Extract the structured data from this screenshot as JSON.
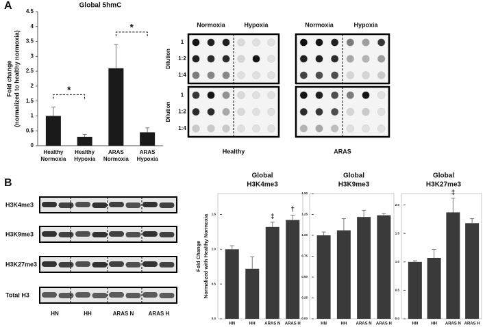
{
  "panels": {
    "a": "A",
    "b": "B"
  },
  "dot_blot": {
    "conditions": [
      "Normoxia",
      "Hypoxia",
      "Normoxia",
      "Hypoxia"
    ],
    "dilution_title": "Dilution",
    "dilutions": [
      "1",
      "1:2",
      "1:4"
    ],
    "groups": [
      "Healthy",
      "ARAS"
    ]
  },
  "western_blot": {
    "rows": [
      "H3K4me3",
      "H3K9me3",
      "H3K27me3",
      "Total H3"
    ],
    "lanes": [
      "HN",
      "HH",
      "ARAS N",
      "ARAS H"
    ]
  },
  "chart_data": [
    {
      "type": "bar",
      "title": "Global 5hmC",
      "y_label": [
        "Fold change",
        "(normalized to healthy normoxia)"
      ],
      "categories": [
        [
          "Healthy",
          "Normoxia"
        ],
        [
          "Healthy",
          "Hypoxia"
        ],
        [
          "ARAS",
          "Normoxia"
        ],
        [
          "ARAS",
          "Hypoxia"
        ]
      ],
      "series": [
        {
          "color": "#1a1a1a",
          "values": [
            1.0,
            0.3,
            2.6,
            0.45
          ],
          "errors": [
            0.3,
            0.08,
            0.8,
            0.15
          ]
        }
      ],
      "ylim": [
        0,
        4.5
      ],
      "yticks": [
        0,
        0.5,
        1,
        1.5,
        2,
        2.5,
        3,
        3.5,
        4,
        4.5
      ],
      "annotations": [
        "*",
        "*"
      ]
    },
    {
      "type": "bar",
      "title": [
        "Global",
        "H3K4me3"
      ],
      "y_label": [
        "Fold Change",
        "Normalized with Healthy Normoxia"
      ],
      "categories": [
        "HN",
        "HH",
        "ARAS N",
        "ARAS H"
      ],
      "series": [
        {
          "color": "#3a3a3a",
          "values": [
            1.0,
            0.72,
            1.32,
            1.42
          ],
          "errors": [
            0.05,
            0.17,
            0.07,
            0.07
          ]
        }
      ],
      "ylim": [
        0,
        1.8
      ],
      "yticks": [
        {
          "value": 0,
          "label": "0.0"
        },
        {
          "value": 0.5,
          "label": "0.5"
        },
        {
          "value": 1,
          "label": "1.0"
        },
        1.5
      ],
      "annotations": [
        {
          "category": "ARAS N",
          "text": "‡"
        },
        {
          "category": "ARAS H",
          "text": "†"
        }
      ]
    },
    {
      "type": "bar",
      "title": [
        "Global",
        "H3K9me3"
      ],
      "categories": [
        "HN",
        "HH",
        "ARAS N",
        "ARAS H"
      ],
      "series": [
        {
          "color": "#3a3a3a",
          "values": [
            1.0,
            1.06,
            1.22,
            1.24
          ],
          "errors": [
            0.04,
            0.14,
            0.08,
            0.02
          ]
        }
      ],
      "ylim": [
        0,
        1.5
      ],
      "yticks": [
        {
          "value": 0,
          "label": "0.00"
        },
        0.25,
        {
          "value": 0.5,
          "label": "0.50"
        },
        0.75,
        {
          "value": 1,
          "label": "1.00"
        },
        1.25,
        {
          "value": 1.5,
          "label": "1.50"
        }
      ]
    },
    {
      "type": "bar",
      "title": [
        "Global",
        "H3K27me3"
      ],
      "categories": [
        "HN",
        "HH",
        "ARAS N",
        "ARAS H"
      ],
      "series": [
        {
          "color": "#3a3a3a",
          "values": [
            1.0,
            1.07,
            1.87,
            1.68
          ],
          "errors": [
            0.02,
            0.15,
            0.25,
            0.08
          ]
        }
      ],
      "ylim": [
        0,
        2.2
      ],
      "yticks": [
        {
          "value": 0,
          "label": "0.0"
        },
        {
          "value": 0.5,
          "label": "0.5"
        },
        {
          "value": 1,
          "label": "1.0"
        },
        {
          "value": 1.5,
          "label": "1.5"
        },
        {
          "value": 2,
          "label": "2.0"
        }
      ],
      "annotations": [
        {
          "category": "ARAS N",
          "text": "‡"
        }
      ]
    }
  ]
}
